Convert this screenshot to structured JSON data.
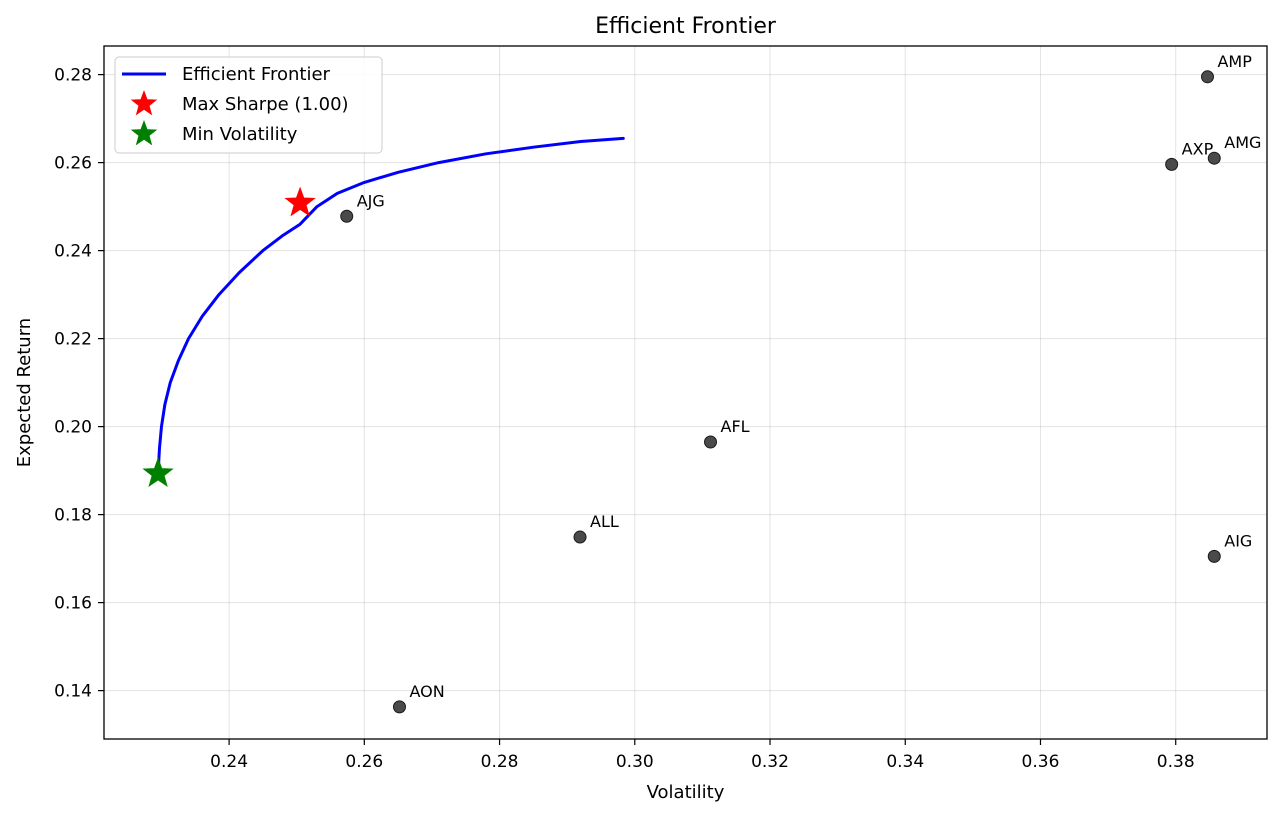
{
  "chart_data": {
    "type": "scatter",
    "title": "Efficient Frontier",
    "xlabel": "Volatility",
    "ylabel": "Expected Return",
    "xlim": [
      0.2215,
      0.3935
    ],
    "ylim": [
      0.129,
      0.2865
    ],
    "xticks": [
      0.24,
      0.26,
      0.28,
      0.3,
      0.32,
      0.34,
      0.36,
      0.38
    ],
    "xtick_labels": [
      "0.24",
      "0.26",
      "0.28",
      "0.30",
      "0.32",
      "0.34",
      "0.36",
      "0.38"
    ],
    "yticks": [
      0.14,
      0.16,
      0.18,
      0.2,
      0.22,
      0.24,
      0.26,
      0.28
    ],
    "ytick_labels": [
      "0.14",
      "0.16",
      "0.18",
      "0.20",
      "0.22",
      "0.24",
      "0.26",
      "0.28"
    ],
    "grid": true,
    "legend_position": "top-left",
    "frontier": {
      "name": "Efficient Frontier",
      "color": "#0000ff",
      "x": [
        0.2295,
        0.2297,
        0.23,
        0.2305,
        0.2313,
        0.2325,
        0.234,
        0.236,
        0.2385,
        0.2415,
        0.245,
        0.248,
        0.2505,
        0.253,
        0.256,
        0.26,
        0.265,
        0.271,
        0.278,
        0.285,
        0.292,
        0.2983
      ],
      "y": [
        0.1893,
        0.195,
        0.2,
        0.205,
        0.21,
        0.215,
        0.22,
        0.225,
        0.23,
        0.235,
        0.24,
        0.2435,
        0.246,
        0.25,
        0.253,
        0.2555,
        0.2578,
        0.26,
        0.262,
        0.2635,
        0.2648,
        0.2655
      ]
    },
    "max_sharpe": {
      "name": "Max Sharpe (1.00)",
      "x": 0.2505,
      "y": 0.2508,
      "color": "#ff0000"
    },
    "min_volatility": {
      "name": "Min Volatility",
      "x": 0.2295,
      "y": 0.1893,
      "color": "#008000"
    },
    "assets": [
      {
        "label": "AMP",
        "x": 0.3847,
        "y": 0.2795
      },
      {
        "label": "AXP",
        "x": 0.3794,
        "y": 0.2596
      },
      {
        "label": "AMG",
        "x": 0.3857,
        "y": 0.261
      },
      {
        "label": "AJG",
        "x": 0.2574,
        "y": 0.2478
      },
      {
        "label": "AFL",
        "x": 0.3112,
        "y": 0.1965
      },
      {
        "label": "ALL",
        "x": 0.2919,
        "y": 0.1749
      },
      {
        "label": "AIG",
        "x": 0.3857,
        "y": 0.1705
      },
      {
        "label": "AON",
        "x": 0.2652,
        "y": 0.1363
      }
    ],
    "asset_color": "#404040"
  }
}
